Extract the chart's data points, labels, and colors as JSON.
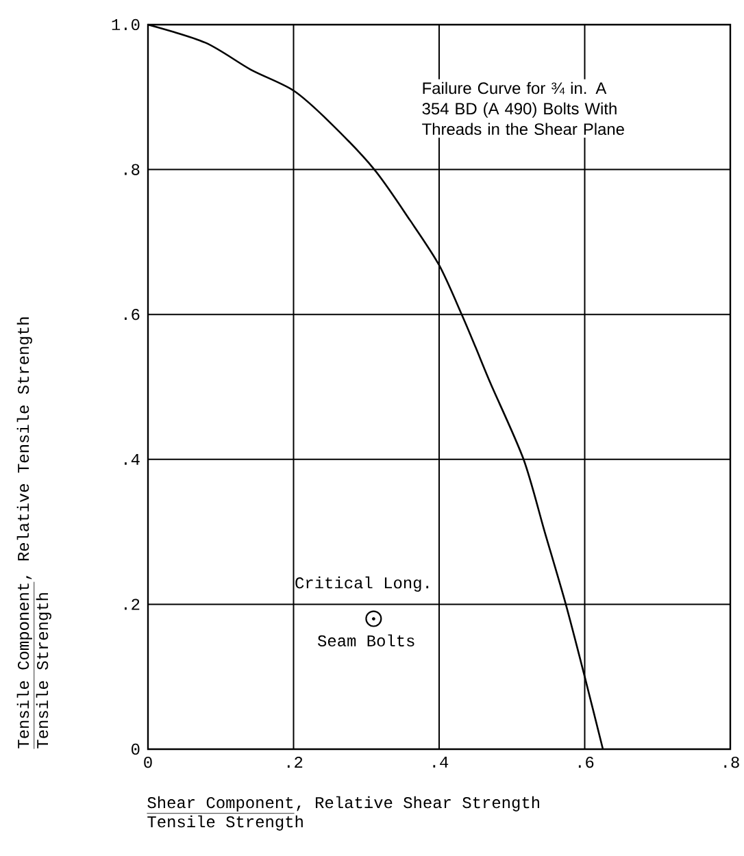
{
  "chart_data": {
    "type": "line",
    "xlabel": "Shear Component",
    "ylabel": "Tensile Component",
    "xlim": [
      0,
      0.8
    ],
    "ylim": [
      0,
      1
    ],
    "xticks": [
      0,
      {
        "value": 0.2,
        "label": ".2"
      },
      {
        "value": 0.4,
        "label": ".4"
      },
      {
        "value": 0.6,
        "label": ".6"
      },
      {
        "value": 0.8,
        "label": ".8"
      }
    ],
    "yticks": [
      0,
      {
        "value": 0.2,
        "label": ".2"
      },
      {
        "value": 0.4,
        "label": ".4"
      },
      {
        "value": 0.6,
        "label": ".6"
      },
      {
        "value": 0.8,
        "label": ".8"
      },
      {
        "value": 1,
        "label": "1.0"
      }
    ],
    "grid": true,
    "series": [
      {
        "type": "line",
        "color": "#000000",
        "x": [
          0,
          0.079,
          0.141,
          0.2,
          0.25,
          0.311,
          0.36,
          0.4,
          0.431,
          0.45,
          0.471,
          0.516,
          0.545,
          0.574,
          0.6,
          0.625
        ],
        "values": [
          1,
          0.975,
          0.938,
          0.909,
          0.865,
          0.8,
          0.73,
          0.668,
          0.6,
          0.555,
          0.504,
          0.4,
          0.3,
          0.2,
          0.1,
          0
        ]
      },
      {
        "type": "scatter",
        "color": "#000000",
        "marker": "circle",
        "x": [
          0.31
        ],
        "values": [
          0.18
        ]
      }
    ],
    "annotations": [
      "Failure Curve for ¾ in. A 354 BD (A 490) Bolts With Threads in the Shear Plane",
      "Critical Long.",
      "Seam Bolts",
      "Tensile Strength",
      ", Relative Shear Strength",
      "Tensile Strength",
      ", Relative Tensile Strength"
    ]
  }
}
